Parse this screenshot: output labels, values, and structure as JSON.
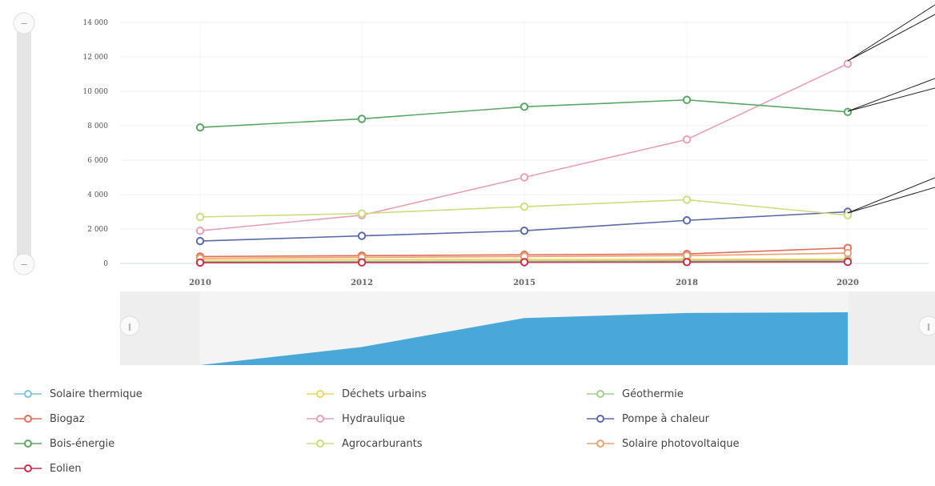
{
  "chart_data": {
    "type": "line",
    "x": [
      "2010",
      "2012",
      "2015",
      "2018",
      "2020"
    ],
    "y_ticks": [
      "0",
      "2 000",
      "4 000",
      "6 000",
      "8 000",
      "10 000",
      "12 000",
      "14 000"
    ],
    "ylim": [
      0,
      14000
    ],
    "grid": true,
    "legend_placement": "bottom",
    "series": [
      {
        "name": "Solaire thermique",
        "color": "#7cc3dd",
        "values": [
          80,
          90,
          110,
          130,
          150
        ]
      },
      {
        "name": "Déchets urbains",
        "color": "#f2d35a",
        "values": [
          200,
          220,
          230,
          240,
          250
        ]
      },
      {
        "name": "Géothermie",
        "color": "#9fcf8f",
        "values": [
          100,
          120,
          140,
          160,
          180
        ]
      },
      {
        "name": "Biogaz",
        "color": "#e46c5a",
        "values": [
          400,
          450,
          500,
          550,
          900
        ]
      },
      {
        "name": "Hydraulique",
        "color": "#e9a0b4",
        "values": [
          1900,
          2800,
          5000,
          7200,
          11600
        ]
      },
      {
        "name": "Pompe à chaleur",
        "color": "#5b6aa8",
        "values": [
          1300,
          1600,
          1900,
          2500,
          3000
        ]
      },
      {
        "name": "Bois-énergie",
        "color": "#5aa865",
        "values": [
          7900,
          8400,
          9100,
          9500,
          8800
        ]
      },
      {
        "name": "Agrocarburants",
        "color": "#cfdc80",
        "values": [
          2700,
          2900,
          3300,
          3700,
          2800
        ]
      },
      {
        "name": "Solaire photovoltaique",
        "color": "#eaa070",
        "values": [
          300,
          350,
          400,
          450,
          600
        ]
      },
      {
        "name": "Eolien",
        "color": "#c8304a",
        "values": [
          50,
          60,
          70,
          80,
          90
        ]
      }
    ],
    "navigator": {
      "values": [
        0,
        2500,
        6500,
        7200,
        7300
      ],
      "color": "#4aa8d8"
    }
  },
  "zoom_controls": {
    "top_label": "−",
    "bottom_label": "−",
    "left_handle_label": "‖",
    "right_handle_label": "‖"
  }
}
